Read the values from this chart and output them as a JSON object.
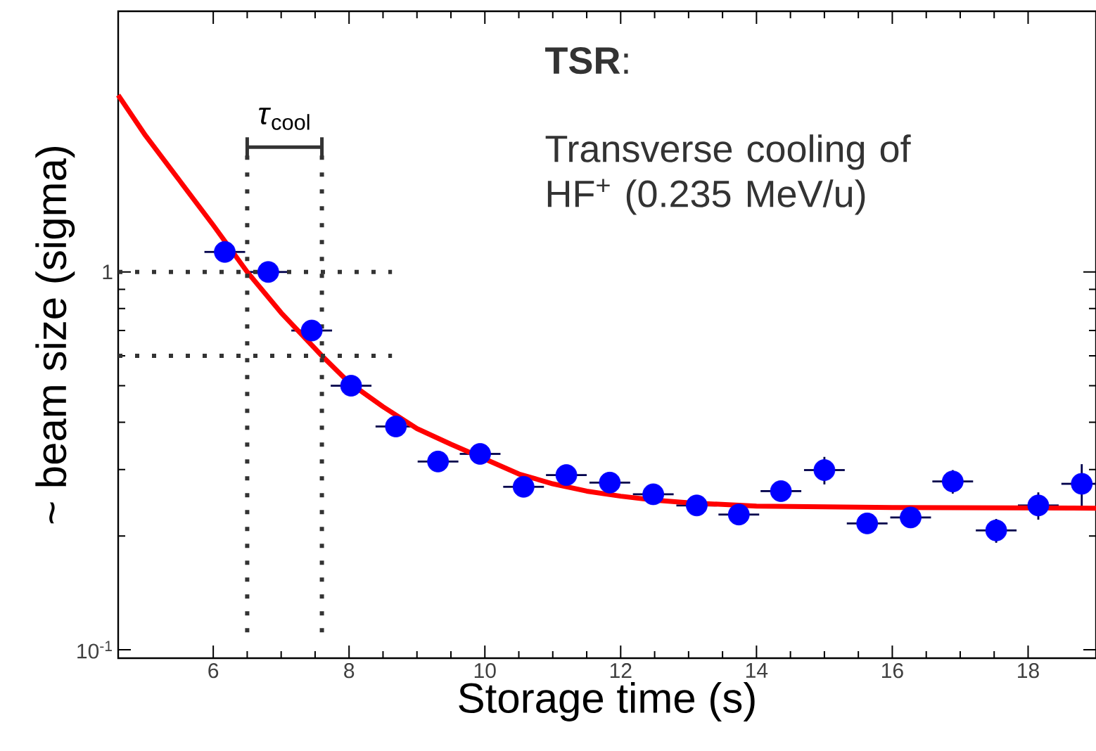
{
  "chart_data": {
    "type": "scatter",
    "xlabel": "Storage time (s)",
    "ylabel": "~ beam size (sigma)",
    "xlim": [
      4.6,
      19.0
    ],
    "ylim": [
      0.095,
      4.9
    ],
    "log": "y",
    "xticks": [
      6,
      8,
      10,
      12,
      14,
      16,
      18
    ],
    "yticks": [
      {
        "value": 0.1,
        "label": "10$^{-1}$"
      },
      1
    ],
    "series": [
      {
        "color": "#0000ff",
        "marker": "circle",
        "x": [
          6.17,
          6.81,
          7.45,
          8.03,
          8.69,
          9.31,
          9.93,
          10.57,
          11.2,
          11.84,
          12.48,
          13.12,
          13.74,
          14.36,
          15.0,
          15.63,
          16.27,
          16.89,
          17.53,
          18.15,
          18.79
        ],
        "values": [
          1.13,
          1.0,
          0.7,
          0.5,
          0.39,
          0.315,
          0.33,
          0.27,
          0.29,
          0.277,
          0.258,
          0.241,
          0.228,
          0.263,
          0.299,
          0.216,
          0.224,
          0.279,
          0.207,
          0.241,
          0.275
        ],
        "xerrors": [
          0.3,
          0.3,
          0.3,
          0.3,
          0.3,
          0.3,
          0.3,
          0.3,
          0.3,
          0.3,
          0.3,
          0.3,
          0.3,
          0.3,
          0.3,
          0.3,
          0.3,
          0.3,
          0.3,
          0.3,
          0.3
        ],
        "errors": [
          null,
          null,
          null,
          null,
          null,
          null,
          null,
          null,
          null,
          null,
          null,
          null,
          null,
          null,
          0.025,
          null,
          null,
          0.02,
          0.015,
          0.02,
          0.035
        ]
      },
      {
        "type": "line",
        "color": "#ff0000",
        "marker": "none",
        "x": [
          4.6,
          5.0,
          5.5,
          6.0,
          6.5,
          7.0,
          7.6,
          8.0,
          8.5,
          9.0,
          9.5,
          10.0,
          10.5,
          11.0,
          11.5,
          12.0,
          12.5,
          13.0,
          14.0,
          16.0,
          19.0
        ],
        "values": [
          2.94,
          2.3,
          1.75,
          1.33,
          1.0,
          0.78,
          0.6,
          0.51,
          0.44,
          0.385,
          0.35,
          0.32,
          0.292,
          0.275,
          0.263,
          0.255,
          0.249,
          0.245,
          0.24,
          0.238,
          0.237
        ]
      }
    ],
    "ref_lines": [
      {
        "axis": "x",
        "value": 6.5,
        "line_style": "dotted"
      },
      {
        "axis": "x",
        "value": 7.6,
        "line_style": "dotted"
      },
      {
        "axis": "y",
        "value": 1,
        "line_style": "dotted"
      },
      {
        "axis": "y",
        "value": 0.6,
        "line_style": "dotted"
      }
    ],
    "annotations": [
      "**TSR**:",
      "Transverse cooling of HF$^{+}$ (0.235 MeV/u)",
      "*τ*$_{cool}$"
    ]
  }
}
